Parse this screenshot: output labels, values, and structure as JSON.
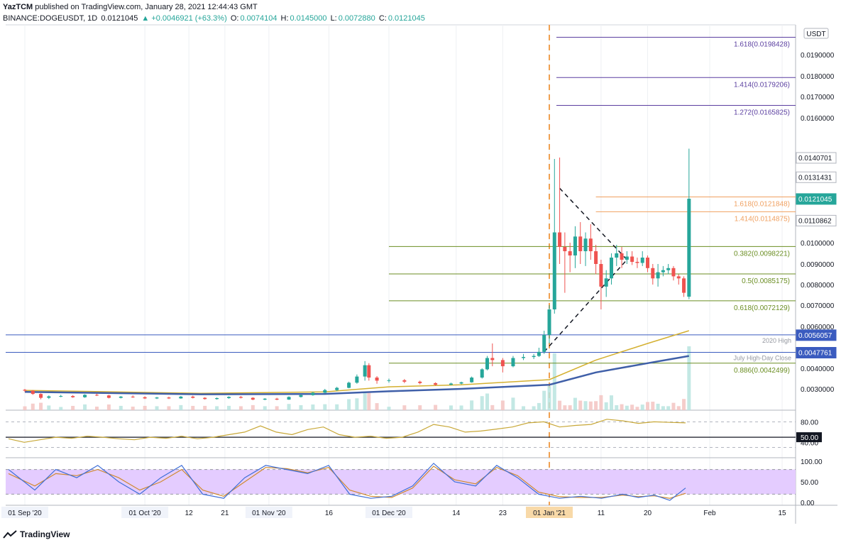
{
  "header": {
    "publisher": "YazTCM",
    "published_text": "published on TradingView.com, January 28, 2021 12:44:43 GMT",
    "symbol": "BINANCE:DOGEUSDT, 1D",
    "last": "0.0121045",
    "change": "▲ +0.0046921 (+63.3%)",
    "o_label": "O:",
    "o_value": "0.0074104",
    "h_label": "H:",
    "h_value": "0.0145000",
    "l_label": "L:",
    "l_value": "0.0072880",
    "c_label": "C:",
    "c_value": "0.0121045"
  },
  "footer": {
    "brand": "TradingView"
  },
  "colors": {
    "up": "#26a69a",
    "down": "#ef5350",
    "fib_purple": "#5b3fa0",
    "fib_orange": "#f0a060",
    "fib_green": "#6b8e23",
    "ma_gold": "#d4b030",
    "ma_blue": "#3f5fa8",
    "support_blue": "#3a5bbf",
    "rsi_line": "#c8a838",
    "stoch_k": "#3f6fd8",
    "stoch_d": "#d08a30",
    "stoch_band": "#e4ccff"
  },
  "chart_data": {
    "type": "candlestick",
    "currency_label": "USDT",
    "price_axis": {
      "ticks": [
        "0.0030000",
        "0.0040000",
        "0.0060000",
        "0.0070000",
        "0.0080000",
        "0.0090000",
        "0.0100000",
        "0.0160000",
        "0.0170000",
        "0.0180000",
        "0.0190000"
      ],
      "markers": [
        {
          "label": "0.0140701",
          "price": 0.0140701,
          "style": "plain"
        },
        {
          "label": "0.0131431",
          "price": 0.0131431,
          "style": "plain"
        },
        {
          "label": "0.0121045",
          "price": 0.0121045,
          "style": "last"
        },
        {
          "label": "0.0110862",
          "price": 0.0110862,
          "style": "plain"
        },
        {
          "label": "0.0056057",
          "price": 0.0056057,
          "style": "blue"
        },
        {
          "label": "0.0047761",
          "price": 0.0047761,
          "style": "blue"
        }
      ]
    },
    "time_axis": [
      {
        "label": "01 Sep '20",
        "date": "2020-09-01",
        "boxed": true
      },
      {
        "label": "01 Oct '20",
        "date": "2020-10-01",
        "boxed": true
      },
      {
        "label": "12",
        "date": "2020-10-12"
      },
      {
        "label": "21",
        "date": "2020-10-21"
      },
      {
        "label": "01 Nov '20",
        "date": "2020-11-01",
        "boxed": true
      },
      {
        "label": "16",
        "date": "2020-11-16"
      },
      {
        "label": "01 Dec '20",
        "date": "2020-12-01",
        "boxed": true
      },
      {
        "label": "14",
        "date": "2020-12-14"
      },
      {
        "label": "23",
        "date": "2020-12-23"
      },
      {
        "label": "01 Jan '21",
        "date": "2021-01-01",
        "highlight": true
      },
      {
        "label": "11",
        "date": "2021-01-11"
      },
      {
        "label": "20",
        "date": "2021-01-20"
      },
      {
        "label": "Feb",
        "date": "2021-02-01"
      },
      {
        "label": "15",
        "date": "2021-02-15"
      }
    ],
    "fib_levels": [
      {
        "label": "1.618(0.0198428)",
        "price": 0.0198428,
        "color": "purple",
        "start": "2021-01-01"
      },
      {
        "label": "1.414(0.0179206)",
        "price": 0.0179206,
        "color": "purple",
        "start": "2021-01-01"
      },
      {
        "label": "1.272(0.0165825)",
        "price": 0.0165825,
        "color": "purple",
        "start": "2021-01-01"
      },
      {
        "label": "1.618(0.0121848)",
        "price": 0.0121848,
        "color": "orange",
        "start": "2021-01-10"
      },
      {
        "label": "1.414(0.0114875)",
        "price": 0.0114875,
        "color": "orange",
        "start": "2021-01-10"
      },
      {
        "label": "0.382(0.0098221)",
        "price": 0.0098221,
        "color": "green",
        "start": "2020-12-01"
      },
      {
        "label": "0.5(0.0085175)",
        "price": 0.0085175,
        "color": "green",
        "start": "2020-12-01"
      },
      {
        "label": "0.618(0.0072129)",
        "price": 0.0072129,
        "color": "green",
        "start": "2020-12-01"
      },
      {
        "label": "0.886(0.0042499)",
        "price": 0.0042499,
        "color": "green",
        "start": "2020-12-01"
      }
    ],
    "support_lines": [
      {
        "label": "2020 High",
        "price": 0.0056057
      },
      {
        "label": "July High-Day Close",
        "price": 0.0047761
      }
    ],
    "candles": [
      [
        "2020-09-01",
        0.00297,
        0.003,
        0.0029,
        0.00294
      ],
      [
        "2020-09-03",
        0.00294,
        0.00296,
        0.0028,
        0.00283
      ],
      [
        "2020-09-05",
        0.00283,
        0.00285,
        0.00265,
        0.0027
      ],
      [
        "2020-09-07",
        0.0027,
        0.00278,
        0.00266,
        0.00275
      ],
      [
        "2020-09-10",
        0.00275,
        0.0028,
        0.00272,
        0.00276
      ],
      [
        "2020-09-13",
        0.00276,
        0.00279,
        0.0027,
        0.00272
      ],
      [
        "2020-09-16",
        0.00272,
        0.00282,
        0.0027,
        0.0028
      ],
      [
        "2020-09-19",
        0.0028,
        0.00284,
        0.00276,
        0.00278
      ],
      [
        "2020-09-22",
        0.00278,
        0.0028,
        0.00268,
        0.0027
      ],
      [
        "2020-09-25",
        0.0027,
        0.00276,
        0.00268,
        0.00274
      ],
      [
        "2020-09-28",
        0.00274,
        0.00278,
        0.0027,
        0.00272
      ],
      [
        "2020-10-01",
        0.00272,
        0.00275,
        0.00266,
        0.00268
      ],
      [
        "2020-10-04",
        0.00268,
        0.00273,
        0.00266,
        0.00271
      ],
      [
        "2020-10-07",
        0.00271,
        0.00274,
        0.00266,
        0.00268
      ],
      [
        "2020-10-10",
        0.00268,
        0.00276,
        0.00267,
        0.00274
      ],
      [
        "2020-10-13",
        0.00274,
        0.00277,
        0.00268,
        0.0027
      ],
      [
        "2020-10-16",
        0.0027,
        0.00272,
        0.00264,
        0.00266
      ],
      [
        "2020-10-19",
        0.00266,
        0.00271,
        0.00264,
        0.00269
      ],
      [
        "2020-10-22",
        0.00269,
        0.00275,
        0.00267,
        0.00273
      ],
      [
        "2020-10-25",
        0.00273,
        0.00276,
        0.00268,
        0.0027
      ],
      [
        "2020-10-28",
        0.0027,
        0.00272,
        0.00262,
        0.00264
      ],
      [
        "2020-10-31",
        0.00264,
        0.00269,
        0.00262,
        0.00267
      ],
      [
        "2020-11-03",
        0.00267,
        0.0027,
        0.00262,
        0.00264
      ],
      [
        "2020-11-06",
        0.00264,
        0.00275,
        0.00263,
        0.00273
      ],
      [
        "2020-11-09",
        0.00273,
        0.00282,
        0.00271,
        0.00279
      ],
      [
        "2020-11-12",
        0.00279,
        0.0029,
        0.00277,
        0.00287
      ],
      [
        "2020-11-15",
        0.00287,
        0.003,
        0.00285,
        0.00296
      ],
      [
        "2020-11-18",
        0.00296,
        0.0031,
        0.00293,
        0.00305
      ],
      [
        "2020-11-21",
        0.00305,
        0.00335,
        0.00303,
        0.0033
      ],
      [
        "2020-11-23",
        0.0033,
        0.0037,
        0.00325,
        0.0036
      ],
      [
        "2020-11-25",
        0.0036,
        0.00435,
        0.0034,
        0.00415
      ],
      [
        "2020-11-26",
        0.00415,
        0.00425,
        0.0034,
        0.00355
      ],
      [
        "2020-11-28",
        0.00355,
        0.00362,
        0.00325,
        0.0034
      ],
      [
        "2020-12-01",
        0.0034,
        0.0035,
        0.0033,
        0.00342
      ],
      [
        "2020-12-04",
        0.00342,
        0.00348,
        0.00328,
        0.00335
      ],
      [
        "2020-12-07",
        0.00335,
        0.0034,
        0.00322,
        0.00328
      ],
      [
        "2020-12-10",
        0.00328,
        0.00332,
        0.00316,
        0.0032
      ],
      [
        "2020-12-13",
        0.0032,
        0.0033,
        0.00318,
        0.00326
      ],
      [
        "2020-12-15",
        0.00326,
        0.00335,
        0.00322,
        0.00332
      ],
      [
        "2020-12-17",
        0.00332,
        0.0036,
        0.0033,
        0.00355
      ],
      [
        "2020-12-19",
        0.00355,
        0.004,
        0.0035,
        0.00395
      ],
      [
        "2020-12-20",
        0.00395,
        0.0046,
        0.0039,
        0.0045
      ],
      [
        "2020-12-21",
        0.0045,
        0.0052,
        0.0041,
        0.0044
      ],
      [
        "2020-12-23",
        0.0044,
        0.0045,
        0.0038,
        0.0041
      ],
      [
        "2020-12-25",
        0.0041,
        0.0046,
        0.00405,
        0.0045
      ],
      [
        "2020-12-27",
        0.0045,
        0.0047,
        0.0044,
        0.00455
      ],
      [
        "2020-12-29",
        0.00455,
        0.0047,
        0.00445,
        0.0046
      ],
      [
        "2020-12-30",
        0.0046,
        0.005,
        0.00455,
        0.0048
      ],
      [
        "2020-12-31",
        0.0048,
        0.0058,
        0.0047,
        0.0056
      ],
      [
        "2021-01-01",
        0.0056,
        0.007,
        0.0052,
        0.0068
      ],
      [
        "2021-01-02",
        0.0068,
        0.014,
        0.0066,
        0.0105
      ],
      [
        "2021-01-03",
        0.0105,
        0.01407,
        0.009,
        0.0098
      ],
      [
        "2021-01-04",
        0.0098,
        0.0105,
        0.0076,
        0.0096
      ],
      [
        "2021-01-05",
        0.0096,
        0.01,
        0.0086,
        0.0094
      ],
      [
        "2021-01-06",
        0.0094,
        0.0108,
        0.0088,
        0.0103
      ],
      [
        "2021-01-07",
        0.0103,
        0.011,
        0.009,
        0.0096
      ],
      [
        "2021-01-08",
        0.0096,
        0.0105,
        0.0089,
        0.0102
      ],
      [
        "2021-01-09",
        0.0102,
        0.0109,
        0.0092,
        0.0096
      ],
      [
        "2021-01-10",
        0.0096,
        0.0099,
        0.0085,
        0.009
      ],
      [
        "2021-01-11",
        0.009,
        0.0092,
        0.0068,
        0.0079
      ],
      [
        "2021-01-12",
        0.0079,
        0.0087,
        0.0074,
        0.0083
      ],
      [
        "2021-01-13",
        0.0083,
        0.0095,
        0.008,
        0.0093
      ],
      [
        "2021-01-14",
        0.0093,
        0.0099,
        0.0089,
        0.0095
      ],
      [
        "2021-01-15",
        0.0095,
        0.0098,
        0.0088,
        0.0092
      ],
      [
        "2021-01-16",
        0.0092,
        0.0096,
        0.009,
        0.00935
      ],
      [
        "2021-01-17",
        0.00935,
        0.0096,
        0.00895,
        0.0091
      ],
      [
        "2021-01-18",
        0.0091,
        0.0093,
        0.0088,
        0.00905
      ],
      [
        "2021-01-19",
        0.00905,
        0.0096,
        0.0089,
        0.0093
      ],
      [
        "2021-01-20",
        0.0093,
        0.0094,
        0.0086,
        0.0088
      ],
      [
        "2021-01-21",
        0.0088,
        0.009,
        0.008,
        0.0083
      ],
      [
        "2021-01-22",
        0.0083,
        0.009,
        0.0079,
        0.0086
      ],
      [
        "2021-01-23",
        0.0086,
        0.0089,
        0.0084,
        0.0087
      ],
      [
        "2021-01-24",
        0.0087,
        0.009,
        0.0085,
        0.0088
      ],
      [
        "2021-01-25",
        0.0088,
        0.0089,
        0.0082,
        0.0084
      ],
      [
        "2021-01-26",
        0.0084,
        0.0085,
        0.008,
        0.0083
      ],
      [
        "2021-01-27",
        0.0083,
        0.0084,
        0.0074,
        0.0076
      ],
      [
        "2021-01-28",
        0.00741,
        0.0145,
        0.00729,
        0.0121
      ]
    ],
    "ma_gold": [
      [
        "2020-09-01",
        0.00295
      ],
      [
        "2020-10-15",
        0.00285
      ],
      [
        "2020-11-15",
        0.0029
      ],
      [
        "2020-12-01",
        0.0031
      ],
      [
        "2020-12-15",
        0.0032
      ],
      [
        "2021-01-01",
        0.00345
      ],
      [
        "2021-01-10",
        0.0044
      ],
      [
        "2021-01-20",
        0.0052
      ],
      [
        "2021-01-28",
        0.0058
      ]
    ],
    "ma_blue": [
      [
        "2020-09-01",
        0.0029
      ],
      [
        "2020-10-15",
        0.00282
      ],
      [
        "2020-11-15",
        0.00283
      ],
      [
        "2020-12-01",
        0.00292
      ],
      [
        "2020-12-15",
        0.003
      ],
      [
        "2021-01-01",
        0.0032
      ],
      [
        "2021-01-10",
        0.0038
      ],
      [
        "2021-01-20",
        0.00425
      ],
      [
        "2021-01-28",
        0.0046
      ]
    ],
    "triangle": {
      "upper": [
        [
          "2021-01-03",
          0.0126
        ],
        [
          "2021-01-16",
          0.0092
        ]
      ],
      "lower": [
        [
          "2020-12-31",
          0.0048
        ],
        [
          "2021-01-16",
          0.0092
        ]
      ]
    },
    "rsi": {
      "ticks": [
        "80.00",
        "40.00"
      ],
      "level_label": "50.00",
      "values": [
        [
          0,
          47
        ],
        [
          3,
          40
        ],
        [
          6,
          45
        ],
        [
          9,
          50
        ],
        [
          12,
          48
        ],
        [
          15,
          52
        ],
        [
          18,
          50
        ],
        [
          21,
          47
        ],
        [
          24,
          45
        ],
        [
          27,
          50
        ],
        [
          30,
          48
        ],
        [
          33,
          52
        ],
        [
          36,
          47
        ],
        [
          39,
          50
        ],
        [
          42,
          55
        ],
        [
          45,
          60
        ],
        [
          48,
          72
        ],
        [
          51,
          60
        ],
        [
          54,
          55
        ],
        [
          57,
          65
        ],
        [
          60,
          70
        ],
        [
          63,
          55
        ],
        [
          66,
          50
        ],
        [
          69,
          52
        ],
        [
          72,
          48
        ],
        [
          75,
          50
        ],
        [
          78,
          60
        ],
        [
          81,
          75
        ],
        [
          84,
          70
        ],
        [
          87,
          60
        ],
        [
          90,
          62
        ],
        [
          93,
          66
        ],
        [
          96,
          70
        ],
        [
          99,
          78
        ],
        [
          102,
          80
        ],
        [
          105,
          70
        ],
        [
          108,
          73
        ],
        [
          111,
          75
        ],
        [
          114,
          85
        ],
        [
          117,
          82
        ],
        [
          120,
          77
        ],
        [
          123,
          80
        ],
        [
          126,
          79
        ],
        [
          129,
          78
        ]
      ]
    },
    "stoch": {
      "ticks": [
        "100.00",
        "50.00",
        "0.00"
      ],
      "k": [
        [
          0,
          80
        ],
        [
          5,
          30
        ],
        [
          9,
          80
        ],
        [
          13,
          60
        ],
        [
          17,
          90
        ],
        [
          21,
          50
        ],
        [
          25,
          20
        ],
        [
          29,
          60
        ],
        [
          33,
          90
        ],
        [
          37,
          20
        ],
        [
          41,
          10
        ],
        [
          45,
          60
        ],
        [
          49,
          90
        ],
        [
          53,
          80
        ],
        [
          57,
          70
        ],
        [
          61,
          90
        ],
        [
          65,
          20
        ],
        [
          69,
          10
        ],
        [
          73,
          15
        ],
        [
          77,
          40
        ],
        [
          81,
          95
        ],
        [
          85,
          50
        ],
        [
          89,
          40
        ],
        [
          93,
          90
        ],
        [
          97,
          60
        ],
        [
          101,
          20
        ],
        [
          105,
          10
        ],
        [
          109,
          15
        ],
        [
          113,
          10
        ],
        [
          117,
          20
        ],
        [
          120,
          12
        ],
        [
          123,
          18
        ],
        [
          126,
          5
        ],
        [
          129,
          35
        ]
      ],
      "d": [
        [
          0,
          70
        ],
        [
          5,
          40
        ],
        [
          9,
          70
        ],
        [
          13,
          65
        ],
        [
          17,
          80
        ],
        [
          21,
          60
        ],
        [
          25,
          30
        ],
        [
          29,
          50
        ],
        [
          33,
          80
        ],
        [
          37,
          30
        ],
        [
          41,
          15
        ],
        [
          45,
          50
        ],
        [
          49,
          85
        ],
        [
          53,
          82
        ],
        [
          57,
          72
        ],
        [
          61,
          85
        ],
        [
          65,
          30
        ],
        [
          69,
          15
        ],
        [
          73,
          12
        ],
        [
          77,
          35
        ],
        [
          81,
          88
        ],
        [
          85,
          55
        ],
        [
          89,
          45
        ],
        [
          93,
          85
        ],
        [
          97,
          65
        ],
        [
          101,
          25
        ],
        [
          105,
          14
        ],
        [
          109,
          12
        ],
        [
          113,
          12
        ],
        [
          117,
          18
        ],
        [
          120,
          14
        ],
        [
          123,
          16
        ],
        [
          126,
          10
        ],
        [
          129,
          22
        ]
      ]
    }
  }
}
